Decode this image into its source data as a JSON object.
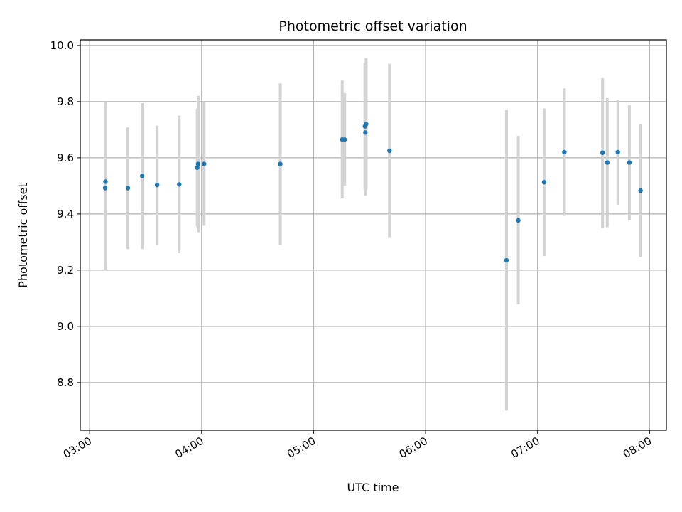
{
  "chart_data": {
    "type": "scatter",
    "title": "Photometric offset variation",
    "xlabel": "UTC time",
    "ylabel": "Photometric offset",
    "xlim": [
      "02:55",
      "08:09"
    ],
    "ylim": [
      8.63,
      10.02
    ],
    "x_ticks": [
      "03:00",
      "04:00",
      "05:00",
      "06:00",
      "07:00",
      "08:00"
    ],
    "y_ticks": [
      "8.8",
      "9.0",
      "9.2",
      "9.4",
      "9.6",
      "9.8",
      "10.0"
    ],
    "grid": true,
    "colors": {
      "point": "#1f77b4",
      "errorbar": "#d3d3d3",
      "grid": "#b0b0b0"
    },
    "points": [
      {
        "x": "03:08:30",
        "y": 9.515,
        "ylo": 9.23,
        "yhi": 9.8
      },
      {
        "x": "03:08:20",
        "y": 9.492,
        "ylo": 9.2,
        "yhi": 9.78
      },
      {
        "x": "03:20:30",
        "y": 9.492,
        "ylo": 9.275,
        "yhi": 9.708
      },
      {
        "x": "03:28:10",
        "y": 9.535,
        "ylo": 9.275,
        "yhi": 9.795
      },
      {
        "x": "03:36:10",
        "y": 9.503,
        "ylo": 9.29,
        "yhi": 9.715
      },
      {
        "x": "03:48:00",
        "y": 9.505,
        "ylo": 9.26,
        "yhi": 9.75
      },
      {
        "x": "03:57:40",
        "y": 9.565,
        "ylo": 9.355,
        "yhi": 9.775
      },
      {
        "x": "03:58:10",
        "y": 9.578,
        "ylo": 9.335,
        "yhi": 9.82
      },
      {
        "x": "04:01:20",
        "y": 9.578,
        "ylo": 9.358,
        "yhi": 9.8
      },
      {
        "x": "04:42:10",
        "y": 9.578,
        "ylo": 9.29,
        "yhi": 9.865
      },
      {
        "x": "05:15:20",
        "y": 9.665,
        "ylo": 9.455,
        "yhi": 9.875
      },
      {
        "x": "05:16:40",
        "y": 9.665,
        "ylo": 9.5,
        "yhi": 9.83
      },
      {
        "x": "05:27:30",
        "y": 9.712,
        "ylo": 9.488,
        "yhi": 9.937
      },
      {
        "x": "05:27:45",
        "y": 9.69,
        "ylo": 9.465,
        "yhi": 9.915
      },
      {
        "x": "05:28:10",
        "y": 9.72,
        "ylo": 9.487,
        "yhi": 9.955
      },
      {
        "x": "05:40:40",
        "y": 9.625,
        "ylo": 9.317,
        "yhi": 9.935
      },
      {
        "x": "06:43:20",
        "y": 9.235,
        "ylo": 8.7,
        "yhi": 9.77
      },
      {
        "x": "06:49:40",
        "y": 9.377,
        "ylo": 9.078,
        "yhi": 9.678
      },
      {
        "x": "07:03:30",
        "y": 9.513,
        "ylo": 9.25,
        "yhi": 9.776
      },
      {
        "x": "07:14:20",
        "y": 9.62,
        "ylo": 9.393,
        "yhi": 9.847
      },
      {
        "x": "07:34:50",
        "y": 9.618,
        "ylo": 9.35,
        "yhi": 9.885
      },
      {
        "x": "07:37:20",
        "y": 9.583,
        "ylo": 9.353,
        "yhi": 9.812
      },
      {
        "x": "07:43:00",
        "y": 9.62,
        "ylo": 9.433,
        "yhi": 9.807
      },
      {
        "x": "07:49:10",
        "y": 9.583,
        "ylo": 9.378,
        "yhi": 9.787
      },
      {
        "x": "07:55:10",
        "y": 9.483,
        "ylo": 9.247,
        "yhi": 9.72
      }
    ]
  }
}
